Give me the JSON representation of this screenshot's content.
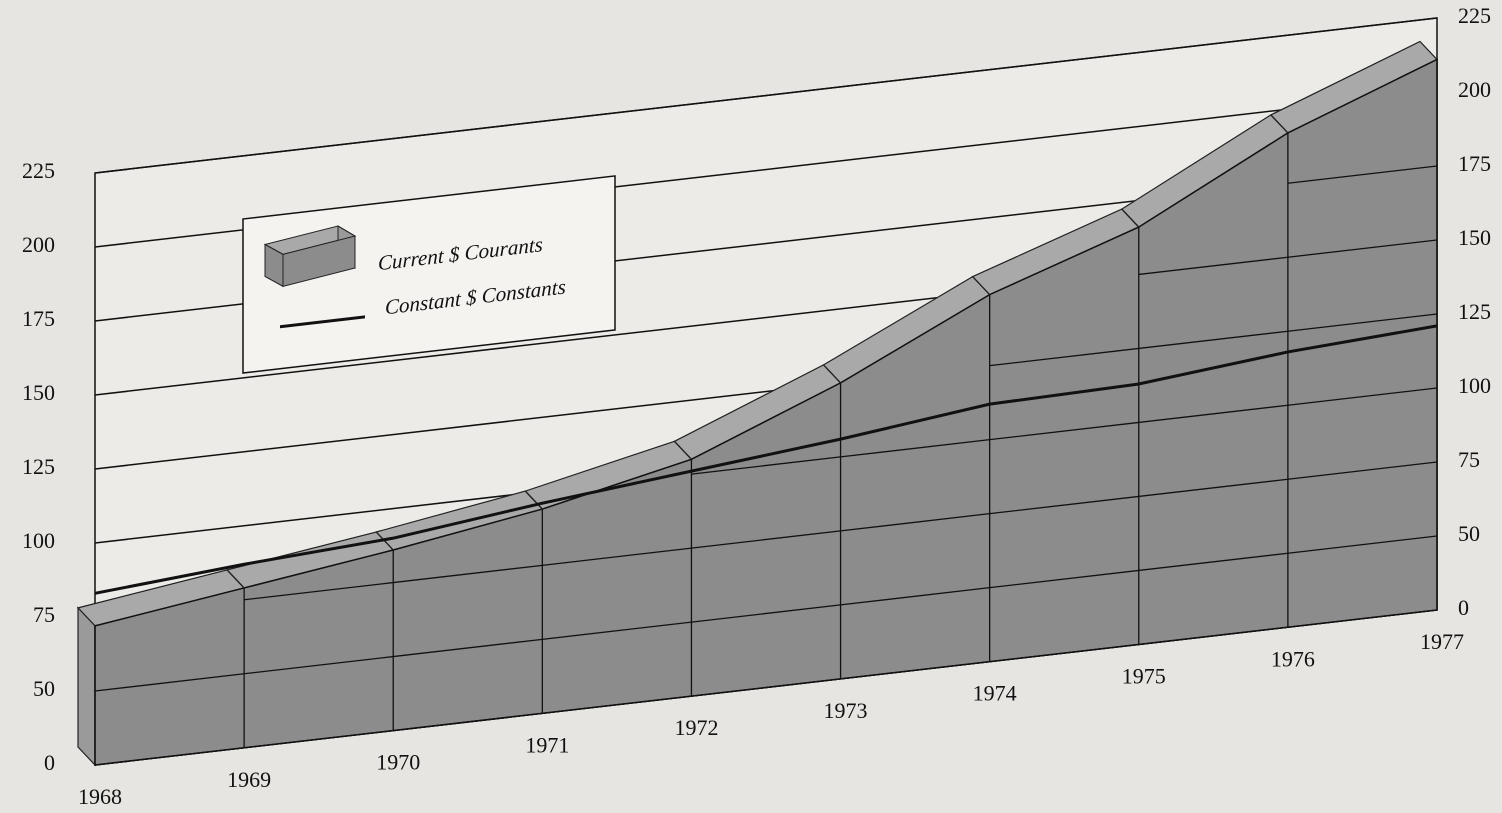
{
  "chart_data": {
    "type": "area-line-3d",
    "categories": [
      "1968",
      "1969",
      "1970",
      "1971",
      "1972",
      "1973",
      "1974",
      "1975",
      "1976",
      "1977"
    ],
    "series": [
      {
        "name": "Current $ Courants",
        "type": "area",
        "color": "#8c8c8c",
        "values": [
          72,
          79,
          86,
          94,
          105,
          125,
          149,
          166,
          192,
          211
        ]
      },
      {
        "name": "Constant $ Constants",
        "type": "line",
        "color": "#111111",
        "values": [
          83,
          87,
          90,
          96,
          101,
          106,
          112,
          113,
          118,
          121
        ]
      }
    ],
    "ylim": [
      0,
      225
    ],
    "yticks": [
      0,
      50,
      75,
      100,
      125,
      150,
      175,
      200,
      225
    ],
    "y2lim": [
      0,
      225
    ],
    "y2ticks": [
      0,
      50,
      75,
      100,
      125,
      150,
      175,
      200,
      225
    ],
    "ybreak": [
      0,
      50
    ],
    "grid": true,
    "legend": "upper-left"
  }
}
